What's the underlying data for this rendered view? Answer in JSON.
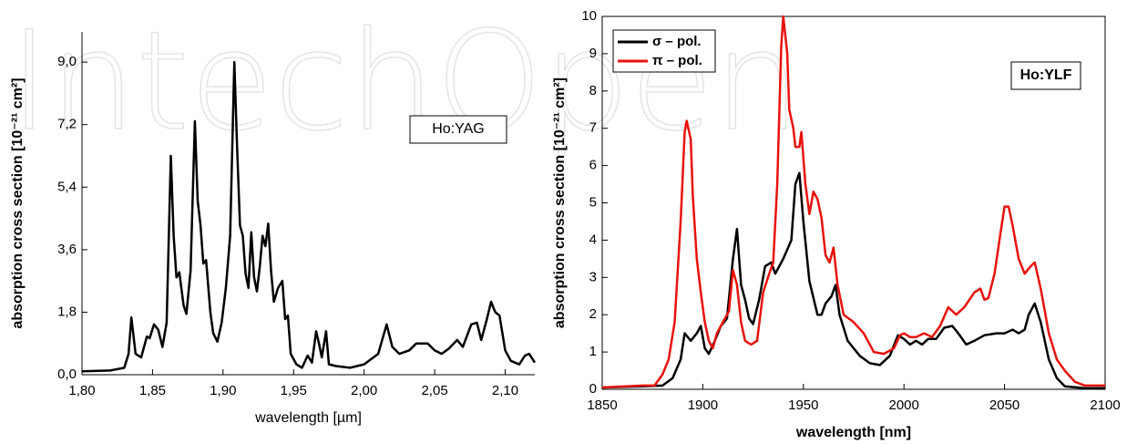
{
  "watermark": "IntechOpen",
  "chart_data": [
    {
      "type": "line",
      "xlabel": "wavelength [µm]",
      "ylabel": "absorption cross section [10⁻²¹ cm²]",
      "annotation": "Ho:YAG",
      "color": "#000000",
      "x": [
        1.8,
        1.82,
        1.83,
        1.833,
        1.835,
        1.838,
        1.842,
        1.846,
        1.848,
        1.851,
        1.854,
        1.857,
        1.86,
        1.863,
        1.865,
        1.867,
        1.869,
        1.872,
        1.874,
        1.877,
        1.88,
        1.882,
        1.884,
        1.886,
        1.888,
        1.891,
        1.893,
        1.896,
        1.899,
        1.902,
        1.905,
        1.908,
        1.91,
        1.912,
        1.914,
        1.916,
        1.918,
        1.92,
        1.922,
        1.924,
        1.926,
        1.928,
        1.93,
        1.932,
        1.934,
        1.936,
        1.939,
        1.942,
        1.944,
        1.946,
        1.948,
        1.952,
        1.956,
        1.96,
        1.963,
        1.966,
        1.968,
        1.97,
        1.973,
        1.975,
        1.98,
        1.99,
        2.0,
        2.01,
        2.016,
        2.02,
        2.025,
        2.032,
        2.037,
        2.045,
        2.05,
        2.055,
        2.06,
        2.066,
        2.07,
        2.076,
        2.08,
        2.083,
        2.087,
        2.09,
        2.093,
        2.096,
        2.1,
        2.104,
        2.11,
        2.114,
        2.117,
        2.121
      ],
      "values": [
        0.1,
        0.12,
        0.2,
        0.6,
        1.65,
        0.6,
        0.5,
        1.1,
        1.05,
        1.45,
        1.3,
        0.8,
        1.5,
        6.3,
        4.0,
        2.8,
        2.95,
        2.0,
        1.75,
        3.0,
        7.3,
        5.0,
        4.3,
        3.2,
        3.3,
        1.8,
        1.2,
        0.95,
        1.5,
        2.5,
        4.0,
        9.0,
        6.5,
        4.3,
        4.0,
        2.9,
        2.5,
        4.1,
        2.8,
        2.4,
        3.1,
        4.0,
        3.7,
        4.35,
        3.0,
        2.1,
        2.5,
        2.7,
        1.6,
        1.7,
        0.6,
        0.3,
        0.2,
        0.55,
        0.35,
        1.25,
        0.9,
        0.5,
        1.25,
        0.3,
        0.25,
        0.2,
        0.3,
        0.6,
        1.45,
        0.8,
        0.6,
        0.7,
        0.9,
        0.9,
        0.7,
        0.6,
        0.75,
        1.0,
        0.8,
        1.45,
        1.5,
        1.0,
        1.6,
        2.1,
        1.8,
        1.7,
        0.7,
        0.4,
        0.3,
        0.55,
        0.6,
        0.35
      ],
      "xlim": [
        1.8,
        2.121
      ],
      "ylim": [
        0,
        9.87
      ],
      "xticks": [
        {
          "value": 1.8,
          "label": "1,80"
        },
        {
          "value": 1.85,
          "label": "1,85"
        },
        {
          "value": 1.9,
          "label": "1,90"
        },
        {
          "value": 1.95,
          "label": "1,95"
        },
        {
          "value": 2.0,
          "label": "2,00"
        },
        {
          "value": 2.05,
          "label": "2,05"
        },
        {
          "value": 2.1,
          "label": "2,10"
        }
      ],
      "yticks": [
        {
          "value": 0,
          "label": "0,0"
        },
        {
          "value": 1.8,
          "label": "1,8"
        },
        {
          "value": 3.6,
          "label": "3,6"
        },
        {
          "value": 5.4,
          "label": "5,4"
        },
        {
          "value": 7.2,
          "label": "7,2"
        },
        {
          "value": 9.0,
          "label": "9,0"
        }
      ]
    },
    {
      "type": "line",
      "xlabel": "wavelength [nm]",
      "ylabel": "absorption cross section [10⁻²¹ cm²]",
      "annotation": "Ho:YLF",
      "legend": "upper left",
      "series": [
        {
          "name": "σ – pol.",
          "color": "#000000",
          "x": [
            1850,
            1870,
            1880,
            1885,
            1889,
            1891,
            1894,
            1897,
            1899,
            1901,
            1903,
            1906,
            1909,
            1912,
            1915,
            1917,
            1919,
            1921,
            1923,
            1925,
            1928,
            1931,
            1934,
            1936,
            1940,
            1944,
            1946,
            1948,
            1950,
            1953,
            1957,
            1959,
            1961,
            1964,
            1966,
            1968,
            1972,
            1978,
            1983,
            1988,
            1993,
            1997,
            2000,
            2003,
            2006,
            2009,
            2012,
            2016,
            2020,
            2024,
            2027,
            2031,
            2035,
            2040,
            2046,
            2050,
            2054,
            2057,
            2060,
            2062,
            2065,
            2068,
            2072,
            2076,
            2080,
            2090,
            2100
          ],
          "values": [
            0.05,
            0.08,
            0.1,
            0.3,
            0.8,
            1.5,
            1.3,
            1.5,
            1.7,
            1.1,
            0.95,
            1.3,
            1.7,
            1.9,
            3.5,
            4.3,
            2.8,
            2.4,
            1.9,
            1.75,
            2.4,
            3.3,
            3.4,
            3.1,
            3.5,
            4.0,
            5.5,
            5.8,
            4.5,
            2.9,
            2.0,
            2.0,
            2.3,
            2.5,
            2.8,
            2.0,
            1.3,
            0.9,
            0.7,
            0.65,
            0.9,
            1.45,
            1.35,
            1.2,
            1.3,
            1.2,
            1.35,
            1.35,
            1.65,
            1.7,
            1.5,
            1.2,
            1.3,
            1.45,
            1.5,
            1.5,
            1.6,
            1.5,
            1.6,
            2.0,
            2.3,
            1.8,
            0.8,
            0.3,
            0.08,
            0.03,
            0.03
          ]
        },
        {
          "name": "π – pol.",
          "color": "#e8120c",
          "x": [
            1850,
            1870,
            1876,
            1880,
            1883,
            1886,
            1889,
            1891,
            1892,
            1894,
            1895,
            1897,
            1899,
            1901,
            1903,
            1905,
            1907,
            1910,
            1913,
            1915,
            1917,
            1919,
            1921,
            1924,
            1927,
            1930,
            1933,
            1935,
            1937,
            1939,
            1940,
            1942,
            1943,
            1945,
            1946,
            1948,
            1949,
            1951,
            1953,
            1955,
            1957,
            1959,
            1961,
            1963,
            1965,
            1967,
            1970,
            1975,
            1980,
            1985,
            1990,
            1995,
            1998,
            2000,
            2003,
            2006,
            2010,
            2014,
            2018,
            2022,
            2026,
            2030,
            2035,
            2038,
            2040,
            2042,
            2045,
            2048,
            2050,
            2052,
            2054,
            2057,
            2060,
            2063,
            2065,
            2068,
            2072,
            2076,
            2080,
            2085,
            2090,
            2100
          ],
          "values": [
            0.05,
            0.1,
            0.1,
            0.4,
            0.8,
            1.8,
            4.5,
            6.9,
            7.2,
            6.7,
            5.2,
            3.5,
            2.6,
            1.8,
            1.3,
            1.1,
            1.5,
            1.8,
            2.1,
            3.2,
            2.8,
            1.8,
            1.3,
            1.2,
            1.3,
            2.6,
            3.1,
            3.4,
            5.5,
            9.2,
            10.0,
            9.0,
            7.5,
            7.0,
            6.5,
            6.5,
            6.9,
            5.5,
            4.7,
            5.3,
            5.1,
            4.6,
            3.6,
            3.4,
            3.8,
            2.8,
            2.0,
            1.8,
            1.5,
            1.0,
            0.95,
            1.1,
            1.45,
            1.5,
            1.4,
            1.4,
            1.5,
            1.4,
            1.7,
            2.2,
            2.0,
            2.2,
            2.6,
            2.7,
            2.4,
            2.45,
            3.1,
            4.2,
            4.9,
            4.9,
            4.4,
            3.5,
            3.1,
            3.3,
            3.4,
            2.7,
            1.5,
            0.8,
            0.5,
            0.2,
            0.1,
            0.1
          ]
        }
      ],
      "xlim": [
        1850,
        2100
      ],
      "ylim": [
        0,
        10
      ],
      "xticks": [
        1850,
        1900,
        1950,
        2000,
        2050,
        2100
      ],
      "yticks": [
        0,
        1,
        2,
        3,
        4,
        5,
        6,
        7,
        8,
        9,
        10
      ]
    }
  ]
}
